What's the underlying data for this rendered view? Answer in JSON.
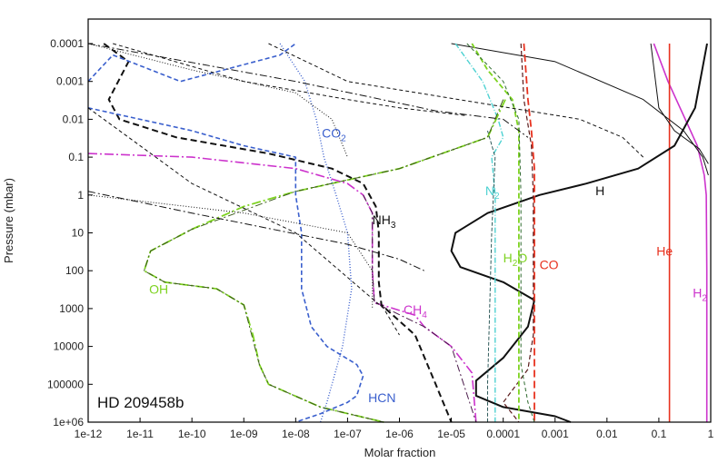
{
  "chart_data": {
    "type": "line",
    "title": "",
    "xlabel": "Molar fraction",
    "ylabel": "Pressure (mbar)",
    "x_scale": "log",
    "y_scale": "log",
    "y_inverted": true,
    "xlim": [
      1e-12,
      1
    ],
    "ylim": [
      0.0001,
      1000000.0
    ],
    "grid": false,
    "legend": "none",
    "x_ticks": [
      "1e-12",
      "1e-11",
      "1e-10",
      "1e-09",
      "1e-08",
      "1e-07",
      "1e-06",
      "1e-05",
      "0.0001",
      "0.001",
      "0.01",
      "0.1",
      "1"
    ],
    "y_ticks": [
      "0.0001",
      "0.001",
      "0.01",
      "0.1",
      "1",
      "10",
      "100",
      "1000",
      "10000",
      "100000",
      "1e+06"
    ],
    "panel_label": "HD 209458b",
    "annotations": [
      {
        "text": "CO",
        "sub": "2",
        "x": 3.2e-08,
        "y": 0.03,
        "color": "#3a5fcd"
      },
      {
        "text": "NH",
        "sub": "3",
        "x": 3e-07,
        "y": 6,
        "color": "#111111"
      },
      {
        "text": "N",
        "sub": "2",
        "x": 4.5e-05,
        "y": 1.0,
        "color": "#4ed2d2"
      },
      {
        "text": "H",
        "sub": "",
        "x": 0.006,
        "y": 1.0,
        "color": "#111111"
      },
      {
        "text": "H",
        "sub": "2",
        "x": 0.0001,
        "y": 60,
        "color": "#7ed321",
        "suffix": "O"
      },
      {
        "text": "CO",
        "sub": "",
        "x": 0.0005,
        "y": 90,
        "color": "#e8321f"
      },
      {
        "text": "He",
        "sub": "",
        "x": 0.09,
        "y": 40,
        "color": "#e8321f"
      },
      {
        "text": "H",
        "sub": "2",
        "x": 0.45,
        "y": 500,
        "color": "#cc33cc"
      },
      {
        "text": "OH",
        "sub": "",
        "x": 1.5e-11,
        "y": 400,
        "color": "#7ed321"
      },
      {
        "text": "CH",
        "sub": "4",
        "x": 1.2e-06,
        "y": 1400,
        "color": "#cc33cc"
      },
      {
        "text": "HCN",
        "sub": "",
        "x": 2.5e-07,
        "y": 300000,
        "color": "#3a5fcd"
      }
    ],
    "series": [
      {
        "name": "H2",
        "color": "#cc33cc",
        "dash": "solid",
        "width": 1.6,
        "points": [
          [
            0.08,
            0.0001
          ],
          [
            0.15,
            0.001
          ],
          [
            0.3,
            0.008
          ],
          [
            0.55,
            0.05
          ],
          [
            0.75,
            0.3
          ],
          [
            0.82,
            1
          ],
          [
            0.84,
            100
          ],
          [
            0.84,
            1000000.0
          ]
        ]
      },
      {
        "name": "He",
        "color": "#e8321f",
        "dash": "solid",
        "width": 1.6,
        "points": [
          [
            0.16,
            0.0001
          ],
          [
            0.16,
            1000000.0
          ]
        ]
      },
      {
        "name": "H",
        "color": "#111111",
        "dash": "solid",
        "width": 2.0,
        "points": [
          [
            0.85,
            0.0001
          ],
          [
            0.5,
            0.005
          ],
          [
            0.2,
            0.05
          ],
          [
            0.04,
            0.2
          ],
          [
            0.004,
            0.5
          ],
          [
            0.0005,
            1
          ],
          [
            5e-05,
            3
          ],
          [
            1.2e-05,
            10
          ],
          [
            1e-05,
            30
          ],
          [
            1.5e-05,
            80
          ],
          [
            0.0001,
            200
          ],
          [
            0.0004,
            600
          ],
          [
            0.0003,
            3000
          ],
          [
            0.0001,
            20000
          ],
          [
            3e-05,
            80000
          ],
          [
            3e-05,
            200000
          ],
          [
            0.0001,
            400000
          ],
          [
            0.001,
            700000
          ],
          [
            0.002,
            1000000.0
          ]
        ]
      },
      {
        "name": "H thin",
        "color": "#111111",
        "dash": "solid",
        "width": 1.0,
        "points": [
          [
            1e-05,
            0.0001
          ],
          [
            0.001,
            0.0003
          ],
          [
            0.05,
            0.003
          ],
          [
            0.3,
            0.02
          ],
          [
            0.7,
            0.1
          ],
          [
            0.9,
            0.3
          ]
        ]
      },
      {
        "name": "H2 thin",
        "color": "#111111",
        "dash": "solid",
        "width": 1.0,
        "points": [
          [
            0.07,
            0.0001
          ],
          [
            0.1,
            0.005
          ],
          [
            0.2,
            0.02
          ],
          [
            0.6,
            0.06
          ],
          [
            0.9,
            0.15
          ]
        ]
      },
      {
        "name": "CO",
        "color": "#e8321f",
        "dash": "8,4",
        "width": 1.8,
        "points": [
          [
            0.00025,
            0.0001
          ],
          [
            0.0003,
            0.003
          ],
          [
            0.00035,
            0.02
          ],
          [
            0.0004,
            0.2
          ],
          [
            0.0004,
            1000000.0
          ]
        ]
      },
      {
        "name": "CO dark",
        "color": "#5a1a1a",
        "dash": "5,3",
        "width": 1.2,
        "points": [
          [
            0.00022,
            0.0001
          ],
          [
            0.00025,
            0.003
          ],
          [
            0.00035,
            0.05
          ],
          [
            0.00038,
            1
          ],
          [
            0.00038,
            5000
          ],
          [
            0.0003,
            40000
          ],
          [
            0.0001,
            300000
          ],
          [
            0.0002,
            1000000.0
          ]
        ]
      },
      {
        "name": "H2O",
        "color": "#7ed321",
        "dash": "6,3",
        "width": 1.8,
        "points": [
          [
            2.5e-05,
            0.0001
          ],
          [
            5e-05,
            0.0005
          ],
          [
            0.00015,
            0.003
          ],
          [
            0.0002,
            0.02
          ],
          [
            0.0002,
            1000000.0
          ]
        ]
      },
      {
        "name": "H2O dark",
        "color": "#2f6b2f",
        "dash": "4,3",
        "width": 1.0,
        "points": [
          [
            2e-05,
            0.0001
          ],
          [
            0.0001,
            0.001
          ],
          [
            0.0002,
            0.01
          ],
          [
            0.00022,
            1
          ],
          [
            0.00022,
            30000
          ],
          [
            0.0003,
            300000
          ],
          [
            0.0004,
            1000000.0
          ]
        ]
      },
      {
        "name": "N2",
        "color": "#4ed2d2",
        "dash": "6,2,1,2",
        "width": 1.4,
        "points": [
          [
            1.2e-05,
            0.0001
          ],
          [
            4e-05,
            0.001
          ],
          [
            8e-05,
            0.01
          ],
          [
            0.0001,
            0.03
          ],
          [
            6e-05,
            0.1
          ],
          [
            7e-05,
            1
          ],
          [
            7e-05,
            1000000.0
          ]
        ]
      },
      {
        "name": "N2 dark",
        "color": "#1a4a4a",
        "dash": "4,2",
        "width": 0.9,
        "points": [
          [
            5e-05,
            0.02
          ],
          [
            7e-05,
            0.1
          ],
          [
            6e-05,
            10
          ],
          [
            5e-05,
            100000
          ],
          [
            5e-05,
            1000000.0
          ]
        ]
      },
      {
        "name": "OH",
        "color": "#7ed321",
        "dash": "10,3,2,3",
        "width": 1.8,
        "points": [
          [
            0.00011,
            0.003
          ],
          [
            5e-05,
            0.03
          ],
          [
            1e-06,
            0.2
          ],
          [
            1e-08,
            0.8
          ],
          [
            1e-09,
            2
          ],
          [
            1e-10,
            8
          ],
          [
            1.6e-11,
            30
          ],
          [
            1.2e-11,
            100
          ],
          [
            3e-11,
            200
          ],
          [
            3e-10,
            300
          ],
          [
            1e-09,
            800
          ],
          [
            1.5e-09,
            5000
          ],
          [
            2e-09,
            30000
          ],
          [
            3e-09,
            100000
          ],
          [
            3e-08,
            400000
          ],
          [
            5e-07,
            1000000.0
          ]
        ]
      },
      {
        "name": "OH dark",
        "color": "#3a5a1a",
        "dash": "8,3,2,3",
        "width": 1.0,
        "points": [
          [
            0.0001,
            0.003
          ],
          [
            5e-05,
            0.03
          ],
          [
            1e-06,
            0.2
          ],
          [
            1e-08,
            0.8
          ],
          [
            1e-10,
            8
          ],
          [
            1.6e-11,
            30
          ],
          [
            1.2e-11,
            100
          ],
          [
            3e-11,
            200
          ],
          [
            3e-10,
            300
          ],
          [
            1e-09,
            800
          ],
          [
            2e-09,
            30000
          ],
          [
            3e-09,
            100000
          ],
          [
            3e-08,
            400000
          ],
          [
            5e-07,
            1000000.0
          ]
        ]
      },
      {
        "name": "CH4",
        "color": "#cc33cc",
        "dash": "10,3,2,3",
        "width": 1.6,
        "points": [
          [
            1e-12,
            0.08
          ],
          [
            1e-10,
            0.1
          ],
          [
            1e-08,
            0.2
          ],
          [
            1e-07,
            0.5
          ],
          [
            2e-07,
            1
          ],
          [
            3e-07,
            3
          ],
          [
            3e-07,
            100
          ],
          [
            3.3e-07,
            700
          ],
          [
            2e-06,
            1500
          ],
          [
            3e-06,
            3000
          ],
          [
            1e-05,
            10000
          ],
          [
            2.5e-05,
            50000
          ],
          [
            3e-05,
            1000000.0
          ]
        ]
      },
      {
        "name": "CH4 dark",
        "color": "#4a1a4a",
        "dash": "8,3,2,3",
        "width": 1.0,
        "points": [
          [
            2e-07,
            1
          ],
          [
            3e-07,
            3
          ],
          [
            3e-07,
            100
          ],
          [
            3.3e-07,
            700
          ],
          [
            3e-06,
            3000
          ],
          [
            1e-05,
            10000
          ],
          [
            3e-05,
            1000000.0
          ]
        ]
      },
      {
        "name": "NH3",
        "color": "#111111",
        "dash": "7,4",
        "width": 2.0,
        "points": [
          [
            2e-12,
            0.0001
          ],
          [
            6e-12,
            0.0003
          ],
          [
            2.5e-12,
            0.003
          ],
          [
            4e-12,
            0.01
          ],
          [
            5e-11,
            0.03
          ],
          [
            3e-09,
            0.08
          ],
          [
            5e-08,
            0.2
          ],
          [
            2e-07,
            0.5
          ],
          [
            3.5e-07,
            2
          ],
          [
            3.8e-07,
            5
          ],
          [
            4e-07,
            10
          ],
          [
            4e-07,
            200
          ],
          [
            4.5e-07,
            800
          ],
          [
            2e-06,
            5000
          ],
          [
            5e-06,
            100000
          ],
          [
            1e-05,
            1000000.0
          ]
        ]
      },
      {
        "name": "HCN",
        "color": "#3a5fcd",
        "dash": "5,3",
        "width": 1.6,
        "points": [
          [
            1e-12,
            0.001
          ],
          [
            3e-12,
            0.0002
          ],
          [
            6e-11,
            0.001
          ],
          [
            5e-09,
            0.0002
          ],
          [
            1e-08,
            0.0001
          ]
        ]
      },
      {
        "name": "HCN low",
        "color": "#3a5fcd",
        "dash": "5,3",
        "width": 1.6,
        "points": [
          [
            1e-12,
            0.005
          ],
          [
            1e-10,
            0.02
          ],
          [
            1e-09,
            0.05
          ],
          [
            1e-08,
            0.1
          ],
          [
            1e-08,
            1
          ],
          [
            1.3e-08,
            10
          ],
          [
            1.3e-08,
            300
          ],
          [
            2e-08,
            3000
          ],
          [
            4e-08,
            10000
          ],
          [
            1.5e-07,
            30000
          ],
          [
            2e-07,
            60000
          ],
          [
            1.5e-07,
            200000
          ],
          [
            1e-07,
            300000
          ],
          [
            3e-08,
            600000
          ],
          [
            1e-08,
            1000000.0
          ]
        ]
      },
      {
        "name": "CO2",
        "color": "#3a5fcd",
        "dash": "1,2",
        "width": 1.4,
        "points": [
          [
            5e-09,
            0.0001
          ],
          [
            1.5e-08,
            0.001
          ],
          [
            2.5e-08,
            0.01
          ],
          [
            3.5e-08,
            0.1
          ],
          [
            6e-08,
            1
          ],
          [
            1e-07,
            10
          ],
          [
            1.2e-07,
            300
          ],
          [
            8e-08,
            10000
          ],
          [
            4e-08,
            300000
          ],
          [
            3e-08,
            1000000.0
          ]
        ]
      },
      {
        "name": "X1",
        "color": "#111111",
        "dash": "1,2",
        "width": 1.0,
        "points": [
          [
            1e-12,
            0.0001
          ],
          [
            1e-10,
            0.0005
          ],
          [
            1e-08,
            0.002
          ],
          [
            5e-08,
            0.01
          ],
          [
            1e-07,
            0.1
          ]
        ]
      },
      {
        "name": "X2",
        "color": "#111111",
        "dash": "8,3,2,3",
        "width": 1.0,
        "points": [
          [
            1e-12,
            0.0001
          ],
          [
            1e-08,
            0.001
          ],
          [
            5e-06,
            0.006
          ],
          [
            0.0001,
            0.01
          ],
          [
            0.0003,
            0.03
          ]
        ]
      },
      {
        "name": "X3",
        "color": "#111111",
        "dash": "4,3",
        "width": 1.0,
        "points": [
          [
            3e-12,
            0.0001
          ],
          [
            1e-09,
            0.001
          ],
          [
            1e-07,
            0.003
          ],
          [
            1e-06,
            0.005
          ],
          [
            2e-05,
            0.008
          ]
        ]
      },
      {
        "name": "X4",
        "color": "#111111",
        "dash": "4,3",
        "width": 1.0,
        "points": [
          [
            3e-09,
            0.0001
          ],
          [
            1e-07,
            0.001
          ],
          [
            0.0003,
            0.006
          ],
          [
            0.003,
            0.01
          ],
          [
            0.02,
            0.03
          ],
          [
            0.05,
            0.1
          ]
        ]
      },
      {
        "name": "X5",
        "color": "#111111",
        "dash": "8,3,2,3",
        "width": 1.0,
        "points": [
          [
            1e-12,
            0.8
          ],
          [
            1e-10,
            3
          ],
          [
            1e-07,
            20
          ],
          [
            1e-06,
            50
          ],
          [
            3e-06,
            100
          ]
        ]
      },
      {
        "name": "X6",
        "color": "#111111",
        "dash": "4,3",
        "width": 1.0,
        "points": [
          [
            1e-12,
            0.005
          ],
          [
            1e-10,
            0.5
          ],
          [
            1e-08,
            10
          ],
          [
            5e-07,
            1000
          ],
          [
            1e-06,
            5000
          ]
        ]
      },
      {
        "name": "X7",
        "color": "#111111",
        "dash": "1,2",
        "width": 1.0,
        "points": [
          [
            1e-12,
            1
          ],
          [
            1e-09,
            3
          ],
          [
            1e-07,
            10
          ],
          [
            3e-07,
            100
          ],
          [
            3e-07,
            1000
          ]
        ]
      }
    ]
  }
}
